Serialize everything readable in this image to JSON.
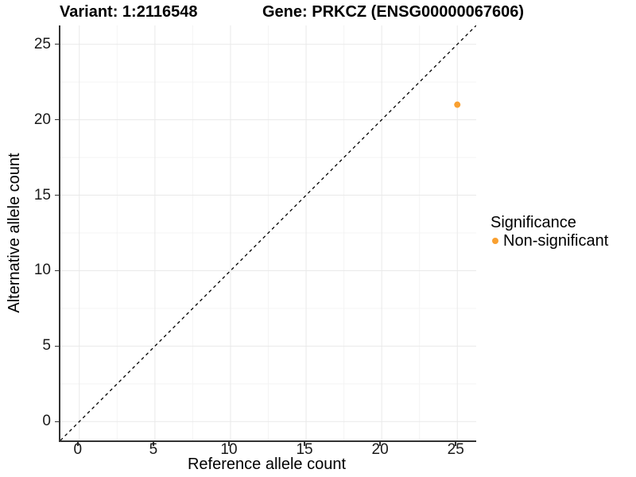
{
  "titles": {
    "variant": "Variant: 1:2116548",
    "gene": "Gene: PRKCZ (ENSG00000067606)"
  },
  "chart_data": {
    "type": "scatter",
    "title_left": "Variant: 1:2116548",
    "title_right": "Gene: PRKCZ (ENSG00000067606)",
    "xlabel": "Reference allele count",
    "ylabel": "Alternative allele count",
    "xlim": [
      -1.25,
      26.25
    ],
    "ylim": [
      -1.25,
      26.25
    ],
    "xticks": [
      0,
      5,
      10,
      15,
      20,
      25
    ],
    "yticks": [
      0,
      5,
      10,
      15,
      20,
      25
    ],
    "grid": {
      "major_color": "#e9e9e9",
      "minor_color": "#f4f4f4",
      "background": "#ffffff"
    },
    "axis_color": "#333333",
    "identity_line": {
      "style": "dashed",
      "color": "#000000",
      "from": [
        -1.25,
        -1.25
      ],
      "to": [
        26.25,
        26.25
      ]
    },
    "series": [
      {
        "name": "Non-significant",
        "color": "#F9A030",
        "points": [
          {
            "x": 25,
            "y": 21
          }
        ]
      }
    ],
    "legend": {
      "title": "Significance",
      "position": "right",
      "entries": [
        {
          "label": "Non-significant",
          "color": "#F9A030"
        }
      ]
    }
  }
}
